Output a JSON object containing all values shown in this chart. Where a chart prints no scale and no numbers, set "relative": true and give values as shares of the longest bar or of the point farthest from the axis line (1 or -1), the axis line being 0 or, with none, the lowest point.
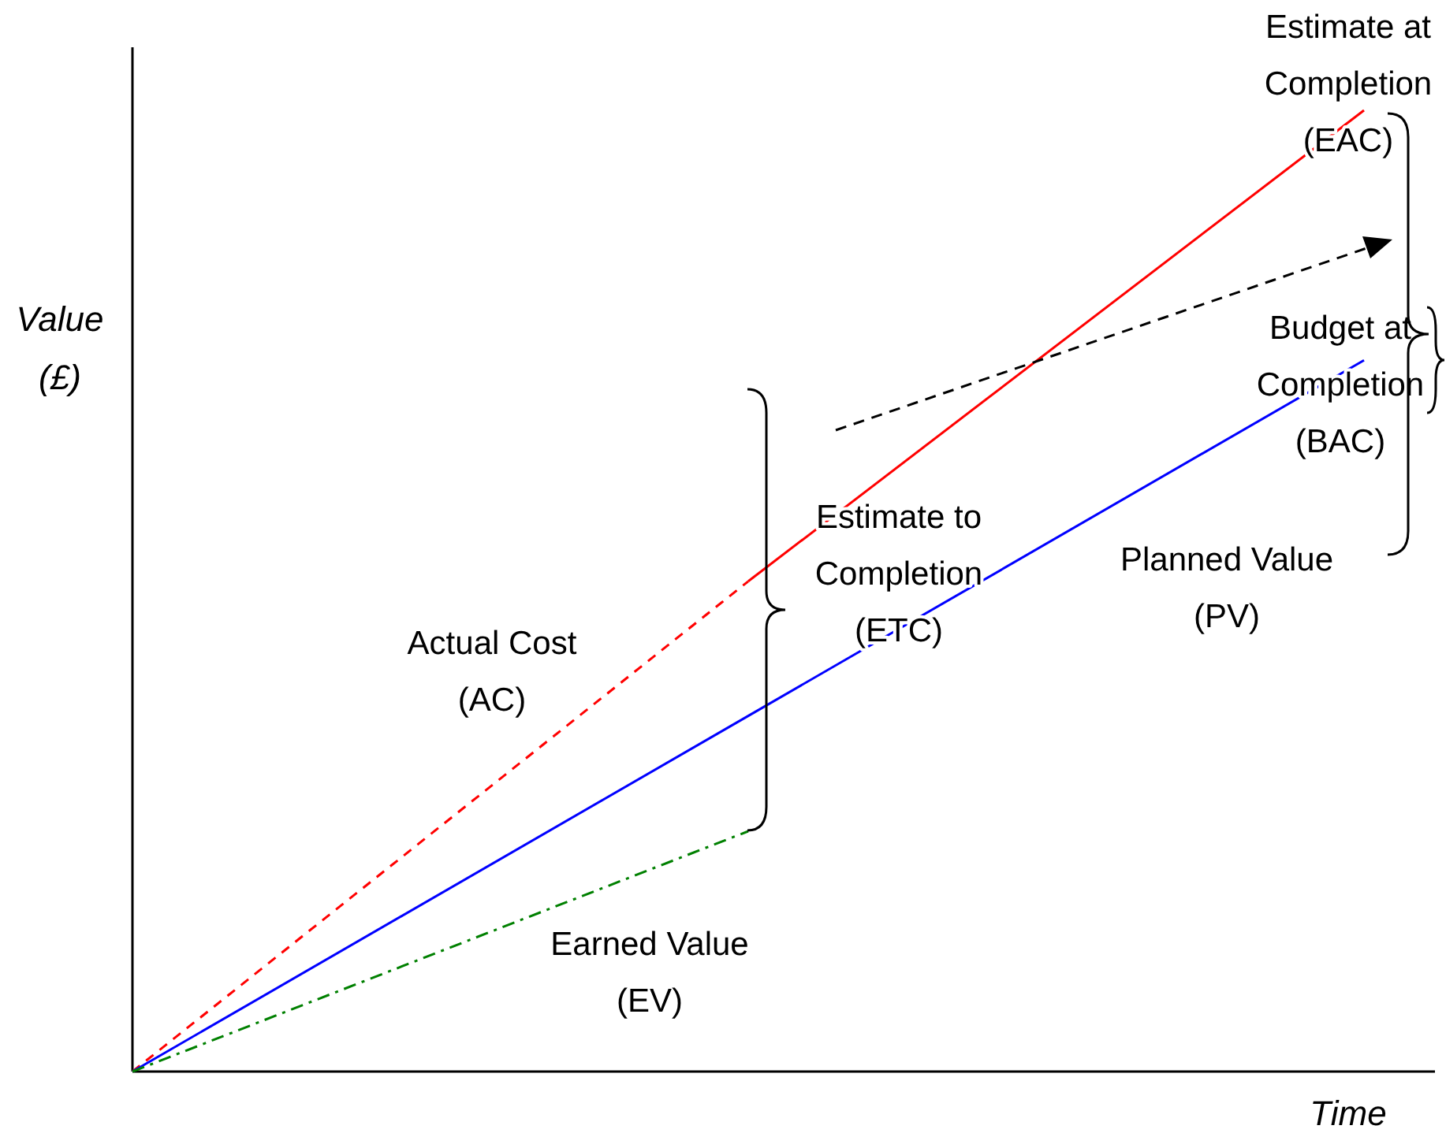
{
  "chart_data": {
    "type": "line",
    "relative": true,
    "xlabel": "Time",
    "ylabel": "Value (£)",
    "categories": [
      null,
      null,
      null
    ],
    "series": [
      {
        "name": "Actual Cost (AC)",
        "color": "#ff0000",
        "line_style": "dashed",
        "values": [
          0,
          0.51,
          null
        ]
      },
      {
        "name": "Estimate at Completion (EAC)",
        "color": "#ff0000",
        "line_style": "solid",
        "values": [
          null,
          0.51,
          1
        ]
      },
      {
        "name": "Planned Value (PV)",
        "color": "#0000ff",
        "line_style": "solid",
        "values": [
          0,
          0.37,
          0.74
        ]
      },
      {
        "name": "Earned Value (EV)",
        "color": "#008000",
        "line_style": "dashdot",
        "values": [
          0,
          0.25,
          null
        ]
      }
    ],
    "annotations": [
      "Estimate to Completion (ETC)",
      "Budget at Completion (BAC)"
    ]
  }
}
